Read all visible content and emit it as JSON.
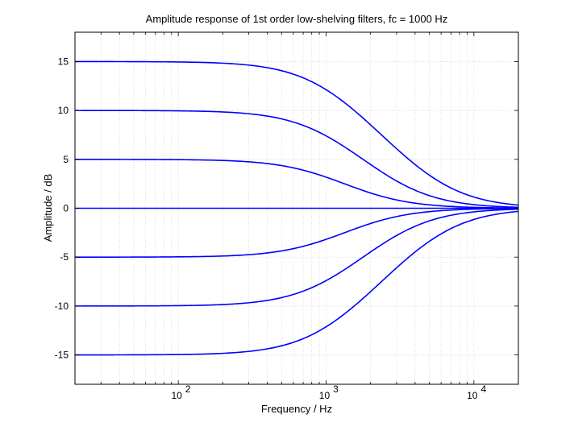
{
  "chart_data": {
    "type": "line",
    "title": "Amplitude response of 1st order low-shelving filters,  fc = 1000 Hz",
    "xlabel": "Frequency / Hz",
    "ylabel": "Amplitude / dB",
    "xscale": "log",
    "xlim": [
      20,
      20000
    ],
    "ylim": [
      -18,
      18
    ],
    "yticks": [
      -15,
      -10,
      -5,
      0,
      5,
      10,
      15
    ],
    "ytick_labels": [
      "-15",
      "-10",
      "-5",
      "0",
      "5",
      "10",
      "15"
    ],
    "xticks": [
      100,
      1000,
      10000
    ],
    "xtick_labels": [
      {
        "base": "10",
        "exp": "2"
      },
      {
        "base": "10",
        "exp": "3"
      },
      {
        "base": "10",
        "exp": "4"
      }
    ],
    "grid": true,
    "line_color": "#0000ff",
    "fc": 1000,
    "series": [
      {
        "gain_db": 15,
        "x": [
          20,
          100,
          300,
          1000,
          2000,
          5000,
          20000
        ],
        "y": [
          15.0,
          14.9,
          14.2,
          10.5,
          5.9,
          1.6,
          0.0
        ]
      },
      {
        "gain_db": 10,
        "x": [
          20,
          100,
          300,
          1000,
          2000,
          5000,
          20000
        ],
        "y": [
          10.0,
          9.9,
          9.3,
          6.3,
          3.4,
          0.9,
          0.0
        ]
      },
      {
        "gain_db": 5,
        "x": [
          20,
          100,
          300,
          1000,
          2000,
          5000,
          20000
        ],
        "y": [
          5.0,
          4.9,
          4.5,
          2.8,
          1.4,
          0.4,
          0.0
        ]
      },
      {
        "gain_db": 0,
        "x": [
          20,
          100,
          300,
          1000,
          2000,
          5000,
          20000
        ],
        "y": [
          0,
          0,
          0,
          0,
          0,
          0,
          0
        ]
      },
      {
        "gain_db": -5,
        "x": [
          20,
          100,
          300,
          1000,
          2000,
          5000,
          20000
        ],
        "y": [
          -5.0,
          -4.9,
          -4.5,
          -2.8,
          -1.4,
          -0.4,
          0.0
        ]
      },
      {
        "gain_db": -10,
        "x": [
          20,
          100,
          300,
          1000,
          2000,
          5000,
          20000
        ],
        "y": [
          -10.0,
          -9.9,
          -9.3,
          -6.3,
          -3.4,
          -0.9,
          0.0
        ]
      },
      {
        "gain_db": -15,
        "x": [
          20,
          100,
          300,
          1000,
          2000,
          5000,
          20000
        ],
        "y": [
          -15.0,
          -14.9,
          -14.2,
          -10.5,
          -5.9,
          -1.6,
          0.0
        ]
      }
    ]
  }
}
